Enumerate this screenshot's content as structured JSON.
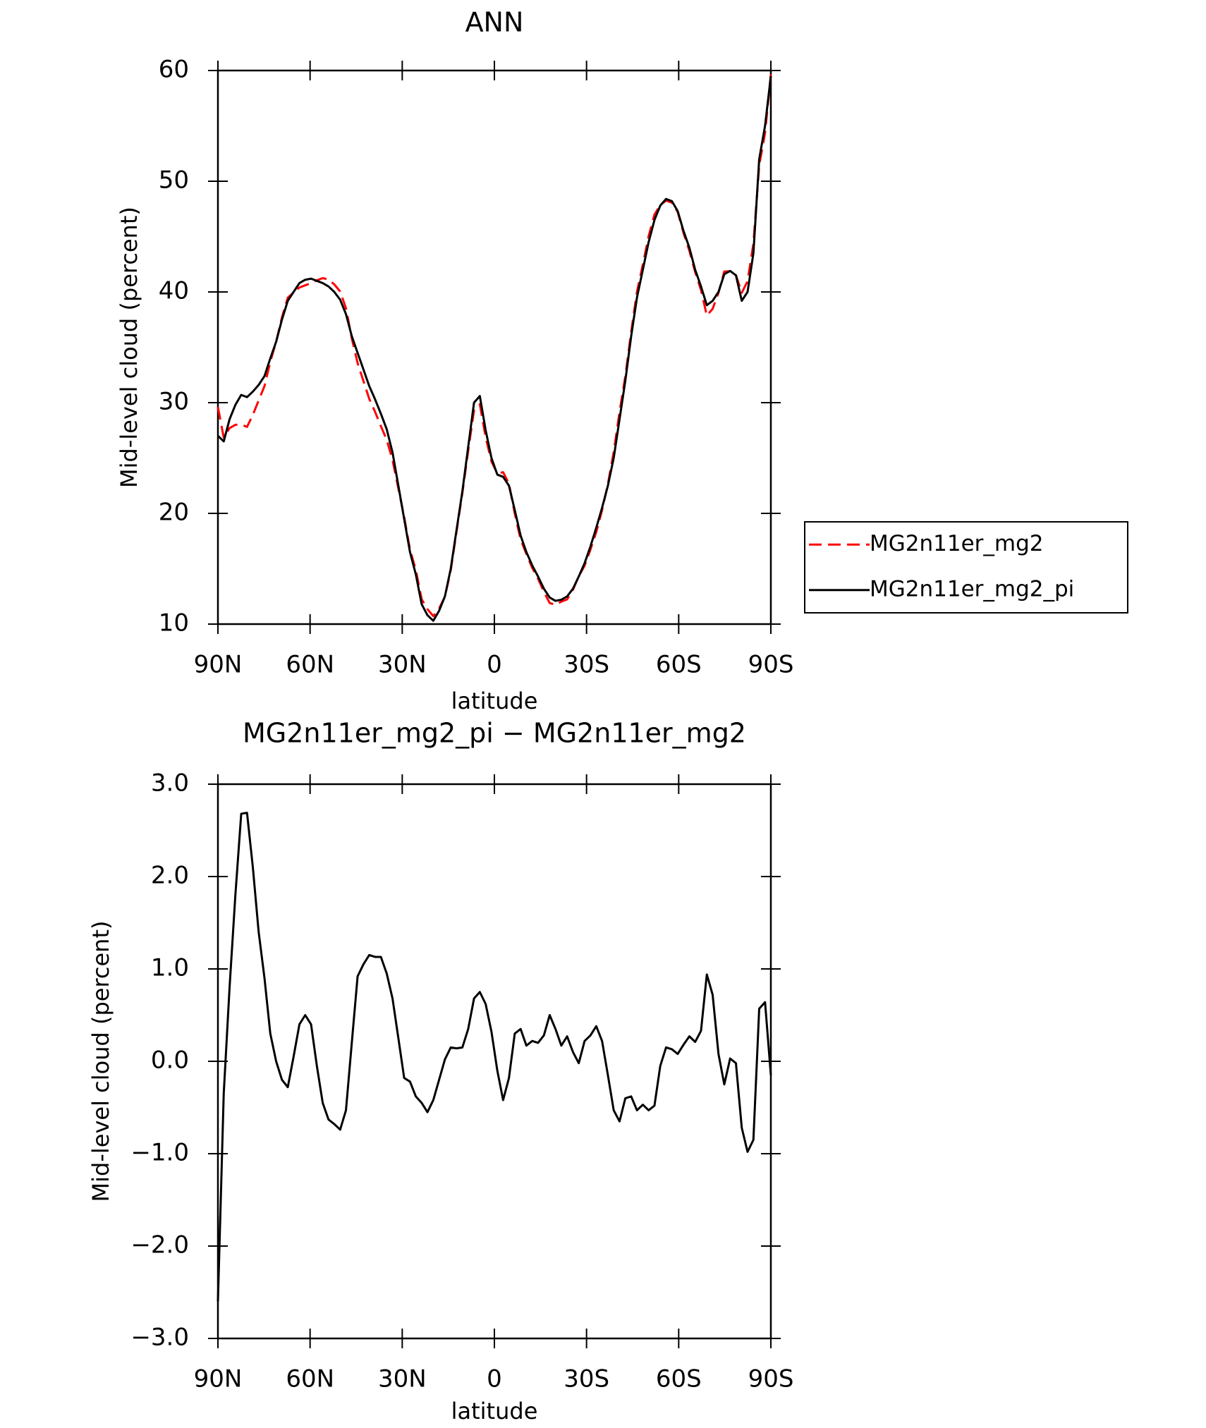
{
  "chart_data": [
    {
      "type": "line",
      "title": "ANN",
      "xlabel": "latitude",
      "ylabel": "Mid-level cloud (percent)",
      "x": [
        90,
        88.11,
        86.21,
        84.32,
        82.42,
        80.53,
        78.63,
        76.74,
        74.84,
        72.95,
        71.05,
        69.16,
        67.26,
        65.37,
        63.47,
        61.58,
        59.68,
        57.79,
        55.89,
        54.0,
        52.11,
        50.21,
        48.32,
        46.42,
        44.53,
        42.63,
        40.74,
        38.84,
        36.95,
        35.05,
        33.16,
        31.26,
        29.37,
        27.47,
        25.58,
        23.68,
        21.79,
        19.89,
        18.0,
        16.11,
        14.21,
        12.32,
        10.42,
        8.53,
        6.63,
        4.74,
        2.84,
        0.95,
        -0.95,
        -2.84,
        -4.74,
        -6.63,
        -8.53,
        -10.42,
        -12.32,
        -14.21,
        -16.11,
        -18.0,
        -19.89,
        -21.79,
        -23.68,
        -25.58,
        -27.47,
        -29.37,
        -31.26,
        -33.16,
        -35.05,
        -36.95,
        -38.84,
        -40.74,
        -42.63,
        -44.53,
        -46.42,
        -48.32,
        -50.21,
        -52.11,
        -54.0,
        -55.89,
        -57.79,
        -59.68,
        -61.58,
        -63.47,
        -65.37,
        -67.26,
        -69.16,
        -71.05,
        -72.95,
        -74.84,
        -76.74,
        -78.63,
        -80.53,
        -82.42,
        -84.32,
        -86.21,
        -88.11,
        -90
      ],
      "series": [
        {
          "name": "MG2n11er_mg2",
          "color": "#ff0000",
          "line_style": "dashed",
          "values": [
            29.6,
            26.85,
            27.7,
            28.0,
            28.02,
            27.81,
            28.9,
            30.2,
            31.5,
            33.7,
            35.5,
            37.7,
            39.48,
            39.95,
            40.4,
            40.6,
            40.8,
            41.05,
            41.25,
            41.13,
            40.68,
            40.04,
            38.53,
            35.8,
            33.58,
            31.95,
            30.35,
            29.17,
            27.87,
            26.65,
            24.82,
            22.25,
            19.68,
            16.72,
            14.88,
            12.25,
            11.35,
            10.72,
            11.4,
            12.48,
            14.85,
            18.36,
            21.85,
            25.65,
            29.32,
            29.85,
            26.88,
            24.68,
            23.6,
            23.72,
            22.68,
            20.0,
            17.65,
            16.33,
            15.08,
            14.1,
            12.92,
            11.9,
            11.75,
            12.03,
            12.23,
            13.1,
            14.32,
            15.28,
            16.72,
            18.32,
            20.28,
            22.65,
            25.53,
            29.15,
            32.4,
            36.38,
            40.03,
            42.47,
            45.03,
            46.98,
            47.85,
            48.25,
            48.07,
            47.22,
            45.32,
            43.73,
            41.79,
            40.17,
            37.86,
            38.48,
            39.92,
            41.85,
            41.87,
            41.52,
            39.92,
            40.98,
            44.35,
            51.43,
            54.36,
            59.65
          ]
        },
        {
          "name": "MG2n11er_mg2_pi",
          "color": "#000000",
          "line_style": "solid",
          "values": [
            27,
            26.5,
            28.5,
            29.8,
            30.7,
            30.5,
            31,
            31.6,
            32.4,
            34,
            35.5,
            37.5,
            39.2,
            40,
            40.8,
            41.1,
            41.2,
            41,
            40.8,
            40.5,
            40,
            39.3,
            38,
            36,
            34.5,
            33,
            31.5,
            30.3,
            29,
            27.6,
            25.5,
            22.5,
            19.5,
            16.5,
            14.5,
            11.8,
            10.8,
            10.3,
            11.2,
            12.5,
            15,
            18.5,
            22,
            26,
            30,
            30.6,
            27.5,
            25,
            23.5,
            23.3,
            22.5,
            20.3,
            18,
            16.5,
            15.3,
            14.3,
            13.2,
            12.4,
            12.1,
            12.2,
            12.5,
            13.2,
            14.3,
            15.5,
            17,
            18.7,
            20.5,
            22.5,
            25,
            28.5,
            32,
            36,
            39.5,
            42,
            44.5,
            46.5,
            47.8,
            48.4,
            48.2,
            47.3,
            45.5,
            44,
            42,
            40.5,
            38.8,
            39.2,
            40,
            41.6,
            41.9,
            41.5,
            39.2,
            40,
            43.5,
            52,
            55,
            59.5
          ]
        }
      ],
      "xlim": [
        90,
        -90
      ],
      "xticks": [
        {
          "value": 90,
          "label": "90N"
        },
        {
          "value": 60,
          "label": "60N"
        },
        {
          "value": 30,
          "label": "30N"
        },
        0,
        {
          "value": -30,
          "label": "30S"
        },
        {
          "value": -60,
          "label": "60S"
        },
        {
          "value": -90,
          "label": "90S"
        }
      ],
      "ylim": [
        10,
        60
      ],
      "yticks": [
        10,
        20,
        30,
        40,
        50,
        60
      ],
      "legend": "right"
    },
    {
      "type": "line",
      "title": "MG2n11er_mg2_pi − MG2n11er_mg2",
      "xlabel": "latitude",
      "ylabel": "Mid-level cloud (percent)",
      "x": [
        90,
        88.11,
        86.21,
        84.32,
        82.42,
        80.53,
        78.63,
        76.74,
        74.84,
        72.95,
        71.05,
        69.16,
        67.26,
        65.37,
        63.47,
        61.58,
        59.68,
        57.79,
        55.89,
        54.0,
        52.11,
        50.21,
        48.32,
        46.42,
        44.53,
        42.63,
        40.74,
        38.84,
        36.95,
        35.05,
        33.16,
        31.26,
        29.37,
        27.47,
        25.58,
        23.68,
        21.79,
        19.89,
        18.0,
        16.11,
        14.21,
        12.32,
        10.42,
        8.53,
        6.63,
        4.74,
        2.84,
        0.95,
        -0.95,
        -2.84,
        -4.74,
        -6.63,
        -8.53,
        -10.42,
        -12.32,
        -14.21,
        -16.11,
        -18.0,
        -19.89,
        -21.79,
        -23.68,
        -25.58,
        -27.47,
        -29.37,
        -31.26,
        -33.16,
        -35.05,
        -36.95,
        -38.84,
        -40.74,
        -42.63,
        -44.53,
        -46.42,
        -48.32,
        -50.21,
        -52.11,
        -54.0,
        -55.89,
        -57.79,
        -59.68,
        -61.58,
        -63.47,
        -65.37,
        -67.26,
        -69.16,
        -71.05,
        -72.95,
        -74.84,
        -76.74,
        -78.63,
        -80.53,
        -82.42,
        -84.32,
        -86.21,
        -88.11,
        -90
      ],
      "series": [
        {
          "color": "#000000",
          "line_style": "solid",
          "values": [
            -2.6,
            -0.35,
            0.8,
            1.8,
            2.68,
            2.69,
            2.1,
            1.4,
            0.9,
            0.3,
            0.0,
            -0.2,
            -0.28,
            0.05,
            0.4,
            0.5,
            0.4,
            -0.05,
            -0.45,
            -0.63,
            -0.68,
            -0.74,
            -0.53,
            0.2,
            0.92,
            1.05,
            1.15,
            1.13,
            1.13,
            0.95,
            0.68,
            0.25,
            -0.18,
            -0.22,
            -0.38,
            -0.45,
            -0.55,
            -0.42,
            -0.2,
            0.02,
            0.15,
            0.14,
            0.15,
            0.35,
            0.68,
            0.75,
            0.62,
            0.32,
            -0.1,
            -0.42,
            -0.18,
            0.3,
            0.35,
            0.17,
            0.22,
            0.2,
            0.28,
            0.5,
            0.35,
            0.17,
            0.27,
            0.1,
            -0.02,
            0.22,
            0.28,
            0.38,
            0.22,
            -0.15,
            -0.53,
            -0.65,
            -0.4,
            -0.38,
            -0.53,
            -0.47,
            -0.53,
            -0.48,
            -0.05,
            0.15,
            0.13,
            0.08,
            0.18,
            0.27,
            0.21,
            0.33,
            0.94,
            0.72,
            0.08,
            -0.25,
            0.03,
            -0.02,
            -0.72,
            -0.98,
            -0.85,
            0.57,
            0.64,
            -0.15
          ]
        }
      ],
      "xlim": [
        90,
        -90
      ],
      "xticks": [
        {
          "value": 90,
          "label": "90N"
        },
        {
          "value": 60,
          "label": "60N"
        },
        {
          "value": 30,
          "label": "30N"
        },
        0,
        {
          "value": -30,
          "label": "30S"
        },
        {
          "value": -60,
          "label": "60S"
        },
        {
          "value": -90,
          "label": "90S"
        }
      ],
      "ylim": [
        -3,
        3
      ],
      "yticks": [
        {
          "value": -3,
          "label": "−3.0"
        },
        {
          "value": -2,
          "label": "−2.0"
        },
        {
          "value": -1,
          "label": "−1.0"
        },
        {
          "value": 0,
          "label": "0.0"
        },
        {
          "value": 1,
          "label": "1.0"
        },
        {
          "value": 2,
          "label": "2.0"
        },
        {
          "value": 3,
          "label": "3.0"
        }
      ]
    }
  ]
}
